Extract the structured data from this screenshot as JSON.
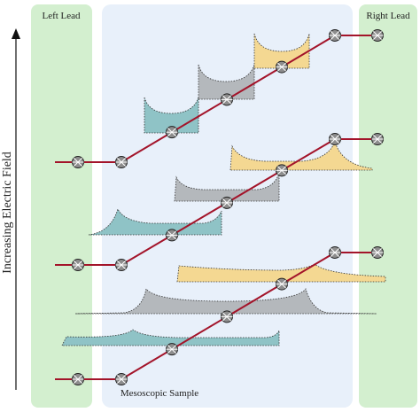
{
  "labels": {
    "left_lead": "Left Lead",
    "right_lead": "Right Lead",
    "axis": "Increasing Electric Field",
    "sample": "Mesoscopic Sample"
  }
}
